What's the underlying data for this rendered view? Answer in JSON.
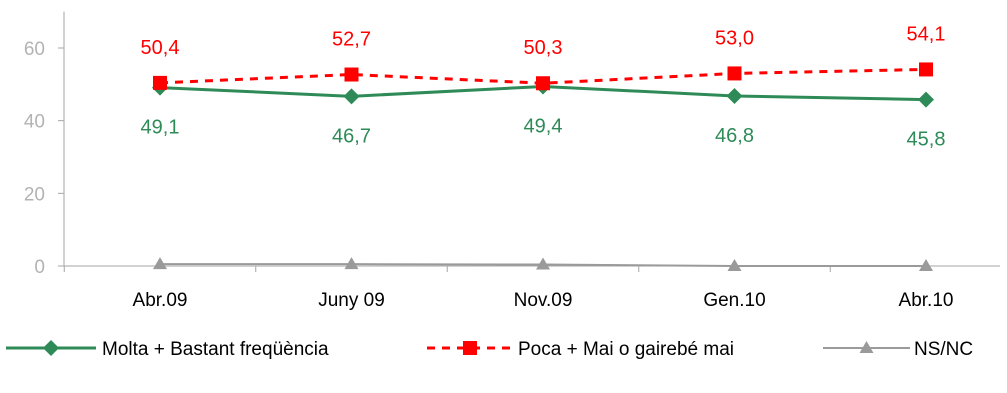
{
  "colors": {
    "green": "#2e8b57",
    "red": "#ff0000",
    "gray": "#9a9a9a",
    "axis": "#a6a6a6",
    "ytick_text": "#b3b3b3"
  },
  "chart_data": {
    "type": "line",
    "title": "",
    "xlabel": "",
    "ylabel": "",
    "categories": [
      "Abr.09",
      "Juny 09",
      "Nov.09",
      "Gen.10",
      "Abr.10"
    ],
    "ylim": [
      0,
      70
    ],
    "yticks": [
      0,
      20,
      40,
      60
    ],
    "ytick_labels": [
      "0",
      "20",
      "40",
      "60"
    ],
    "grid": false,
    "legend_position": "bottom",
    "series": [
      {
        "name": "Molta  + Bastant freqüència",
        "values": [
          49.1,
          46.7,
          49.4,
          46.8,
          45.8
        ],
        "labels": [
          "49,1",
          "46,7",
          "49,4",
          "46,8",
          "45,8"
        ],
        "color": "#2e8b57",
        "marker": "diamond",
        "line_style": "solid",
        "label_position": "below"
      },
      {
        "name": "Poca + Mai o gairebé mai",
        "values": [
          50.4,
          52.7,
          50.3,
          53.0,
          54.1
        ],
        "labels": [
          "50,4",
          "52,7",
          "50,3",
          "53,0",
          "54,1"
        ],
        "color": "#ff0000",
        "marker": "square",
        "line_style": "dashed",
        "label_position": "above"
      },
      {
        "name": "NS/NC",
        "values": [
          0.5,
          0.5,
          0.4,
          0,
          0
        ],
        "labels": [],
        "color": "#9a9a9a",
        "marker": "triangle",
        "line_style": "solid",
        "label_position": "none"
      }
    ]
  }
}
